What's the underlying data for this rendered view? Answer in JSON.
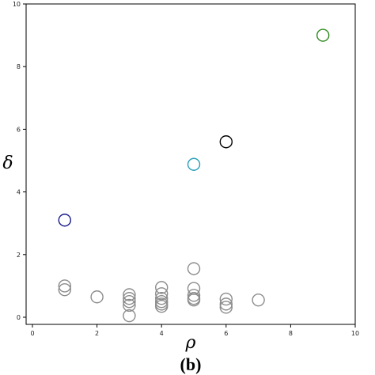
{
  "chart_data": {
    "type": "scatter",
    "title": "",
    "xlabel": "ρ",
    "ylabel": "δ",
    "caption": "(b)",
    "xlim": [
      0,
      10
    ],
    "ylim": [
      0,
      10
    ],
    "xticks": [
      0,
      2,
      4,
      6,
      8,
      10
    ],
    "yticks": [
      0,
      2,
      4,
      6,
      8,
      10
    ],
    "grid": false,
    "legend": "none",
    "marker": "open-circle",
    "series": [
      {
        "color": "#8c8c8c",
        "points": [
          {
            "x": 1,
            "y": 1.0
          },
          {
            "x": 1,
            "y": 0.88
          },
          {
            "x": 2,
            "y": 0.65
          },
          {
            "x": 3,
            "y": 0.72
          },
          {
            "x": 3,
            "y": 0.6
          },
          {
            "x": 3,
            "y": 0.5
          },
          {
            "x": 3,
            "y": 0.38
          },
          {
            "x": 3,
            "y": 0.05
          },
          {
            "x": 4,
            "y": 0.95
          },
          {
            "x": 4,
            "y": 0.75
          },
          {
            "x": 4,
            "y": 0.6
          },
          {
            "x": 4,
            "y": 0.5
          },
          {
            "x": 4,
            "y": 0.42
          },
          {
            "x": 4,
            "y": 0.35
          },
          {
            "x": 5,
            "y": 1.55
          },
          {
            "x": 5,
            "y": 0.92
          },
          {
            "x": 5,
            "y": 0.7
          },
          {
            "x": 5,
            "y": 0.6
          },
          {
            "x": 5,
            "y": 0.55
          },
          {
            "x": 6,
            "y": 0.58
          },
          {
            "x": 6,
            "y": 0.42
          },
          {
            "x": 6,
            "y": 0.32
          },
          {
            "x": 7,
            "y": 0.55
          }
        ]
      },
      {
        "color": "#1a1a8c",
        "points": [
          {
            "x": 1,
            "y": 3.1
          }
        ]
      },
      {
        "color": "#2aa0b8",
        "points": [
          {
            "x": 5,
            "y": 4.88
          }
        ]
      },
      {
        "color": "#000000",
        "points": [
          {
            "x": 6,
            "y": 5.6
          }
        ]
      },
      {
        "color": "#2e8b1e",
        "points": [
          {
            "x": 9,
            "y": 9.0
          }
        ]
      }
    ]
  }
}
